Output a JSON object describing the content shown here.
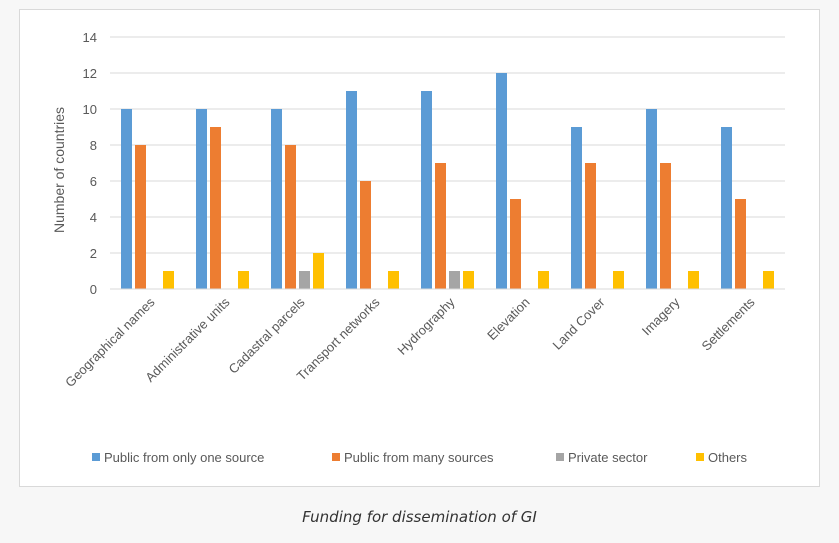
{
  "caption": "Funding for dissemination of GI",
  "chart_data": {
    "type": "bar",
    "title": "",
    "xlabel": "",
    "ylabel": "Number of countries",
    "ylim": [
      0,
      14
    ],
    "yticks": [
      0,
      2,
      4,
      6,
      8,
      10,
      12,
      14
    ],
    "grid": true,
    "legend_position": "bottom",
    "categories": [
      "Geographical names",
      "Administrative units",
      "Cadastral parcels",
      "Transport networks",
      "Hydrography",
      "Elevation",
      "Land Cover",
      "Imagery",
      "Settlements"
    ],
    "series": [
      {
        "name": "Public from only one source",
        "color": "#5b9bd5",
        "values": [
          10,
          10,
          10,
          11,
          11,
          12,
          9,
          10,
          9
        ]
      },
      {
        "name": "Public from many sources",
        "color": "#ed7d31",
        "values": [
          8,
          9,
          8,
          6,
          7,
          5,
          7,
          7,
          5
        ]
      },
      {
        "name": "Private sector",
        "color": "#a5a5a5",
        "values": [
          0,
          0,
          1,
          0,
          1,
          0,
          0,
          0,
          0
        ]
      },
      {
        "name": "Others",
        "color": "#ffc000",
        "values": [
          1,
          1,
          2,
          1,
          1,
          1,
          1,
          1,
          1
        ]
      }
    ]
  }
}
